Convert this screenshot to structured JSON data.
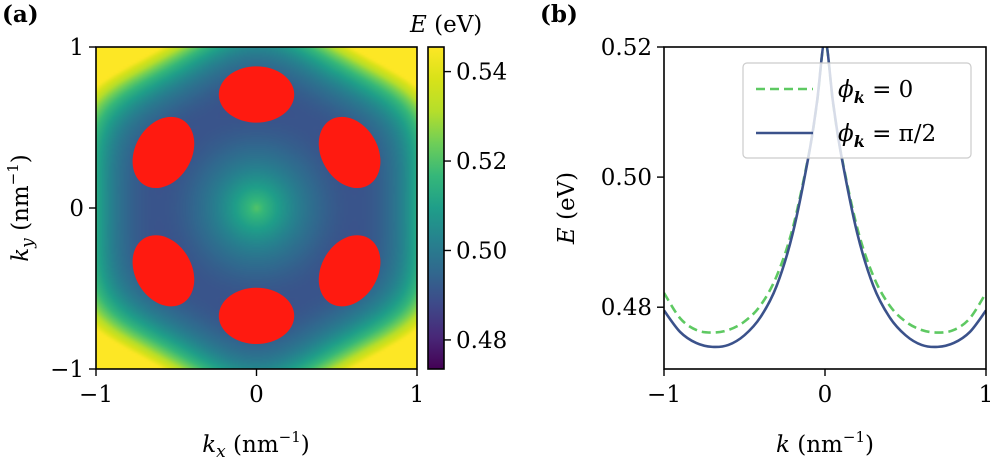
{
  "chart_data": [
    {
      "type": "heatmap",
      "panel_label": "(a)",
      "xlabel": "k_x (nm⁻¹)",
      "xlabel_main": "k",
      "xlabel_sub": "x",
      "xlabel_unit_open": " (nm",
      "xlabel_unit_sup": "−1",
      "xlabel_unit_close": ")",
      "ylabel": "k_y (nm⁻¹)",
      "ylabel_main": "k",
      "ylabel_sub": "y",
      "ylabel_unit_open": " (nm",
      "ylabel_unit_sup": "−1",
      "ylabel_unit_close": ")",
      "xlim": [
        -1,
        1
      ],
      "ylim": [
        -1,
        1
      ],
      "xticks": [
        {
          "v": -1,
          "label": "−1"
        },
        {
          "v": 0,
          "label": "0"
        },
        {
          "v": 1,
          "label": "1"
        }
      ],
      "yticks": [
        {
          "v": -1,
          "label": "−1"
        },
        {
          "v": 0,
          "label": "0"
        },
        {
          "v": 1,
          "label": "1"
        }
      ],
      "colormap": "viridis",
      "colorbar": {
        "label_main": "E",
        "label_unit": " (eV)",
        "range": [
          0.4735,
          0.5455
        ],
        "ticks": [
          {
            "v": 0.48,
            "label": "0.48"
          },
          {
            "v": 0.5,
            "label": "0.50"
          },
          {
            "v": 0.52,
            "label": "0.52"
          },
          {
            "v": 0.54,
            "label": "0.54"
          }
        ]
      },
      "ellipse_color": "#ff1a10",
      "ellipses": [
        {
          "cx": 0.0,
          "cy": 0.705,
          "rx": 0.235,
          "ry": 0.175,
          "angle": 0
        },
        {
          "cx": 0.0,
          "cy": -0.67,
          "rx": 0.235,
          "ry": 0.175,
          "angle": 0
        },
        {
          "cx": -0.58,
          "cy": 0.345,
          "rx": 0.235,
          "ry": 0.175,
          "angle": -60
        },
        {
          "cx": 0.58,
          "cy": 0.345,
          "rx": 0.235,
          "ry": 0.175,
          "angle": 60
        },
        {
          "cx": -0.58,
          "cy": -0.39,
          "rx": 0.235,
          "ry": 0.175,
          "angle": 60
        },
        {
          "cx": 0.58,
          "cy": -0.39,
          "rx": 0.235,
          "ry": 0.175,
          "angle": -60
        }
      ]
    },
    {
      "type": "line",
      "panel_label": "(b)",
      "xlabel": "k (nm⁻¹)",
      "xlabel_main": "k",
      "xlabel_unit_open": " (nm",
      "xlabel_unit_sup": "−1",
      "xlabel_unit_close": ")",
      "ylabel": "E (eV)",
      "ylabel_main": "E",
      "ylabel_unit": " (eV)",
      "xlim": [
        -1,
        1
      ],
      "ylim": [
        0.4705,
        0.52
      ],
      "xticks": [
        {
          "v": -1,
          "label": "−1"
        },
        {
          "v": 0,
          "label": "0"
        },
        {
          "v": 1,
          "label": "1"
        }
      ],
      "yticks": [
        {
          "v": 0.48,
          "label": "0.48"
        },
        {
          "v": 0.5,
          "label": "0.50"
        },
        {
          "v": 0.52,
          "label": "0.52"
        }
      ],
      "legend_position": "top-right",
      "series": [
        {
          "name": "φ_k = 0",
          "legend_main": "ϕ",
          "legend_sub": "k",
          "legend_rest": " = 0",
          "color": "#5ec962",
          "dash": "dashed",
          "x": [
            -1.0,
            -0.9,
            -0.8,
            -0.7,
            -0.6,
            -0.5,
            -0.4,
            -0.3,
            -0.2,
            -0.1,
            -0.05,
            0.0,
            0.05,
            0.1,
            0.2,
            0.3,
            0.4,
            0.5,
            0.6,
            0.7,
            0.8,
            0.9,
            1.0
          ],
          "y": [
            0.4822,
            0.4783,
            0.4765,
            0.4761,
            0.4765,
            0.4778,
            0.4803,
            0.4848,
            0.4922,
            0.5036,
            0.5114,
            0.521,
            0.5114,
            0.5036,
            0.4922,
            0.4848,
            0.4803,
            0.4778,
            0.4765,
            0.4761,
            0.4765,
            0.4783,
            0.4822
          ]
        },
        {
          "name": "φ_k = π/2",
          "legend_main": "ϕ",
          "legend_sub": "k",
          "legend_rest": " = π/2",
          "color": "#3b528b",
          "dash": "solid",
          "x": [
            -1.0,
            -0.9,
            -0.8,
            -0.7,
            -0.6,
            -0.5,
            -0.4,
            -0.3,
            -0.2,
            -0.1,
            -0.05,
            0.0,
            0.05,
            0.1,
            0.2,
            0.3,
            0.4,
            0.5,
            0.6,
            0.7,
            0.8,
            0.9,
            1.0
          ],
          "y": [
            0.4795,
            0.4762,
            0.4745,
            0.4739,
            0.4742,
            0.4757,
            0.4785,
            0.4833,
            0.4914,
            0.5035,
            0.5115,
            0.521,
            0.5115,
            0.5035,
            0.4914,
            0.4833,
            0.4785,
            0.4757,
            0.4742,
            0.4739,
            0.4745,
            0.4762,
            0.4795
          ]
        }
      ]
    }
  ]
}
